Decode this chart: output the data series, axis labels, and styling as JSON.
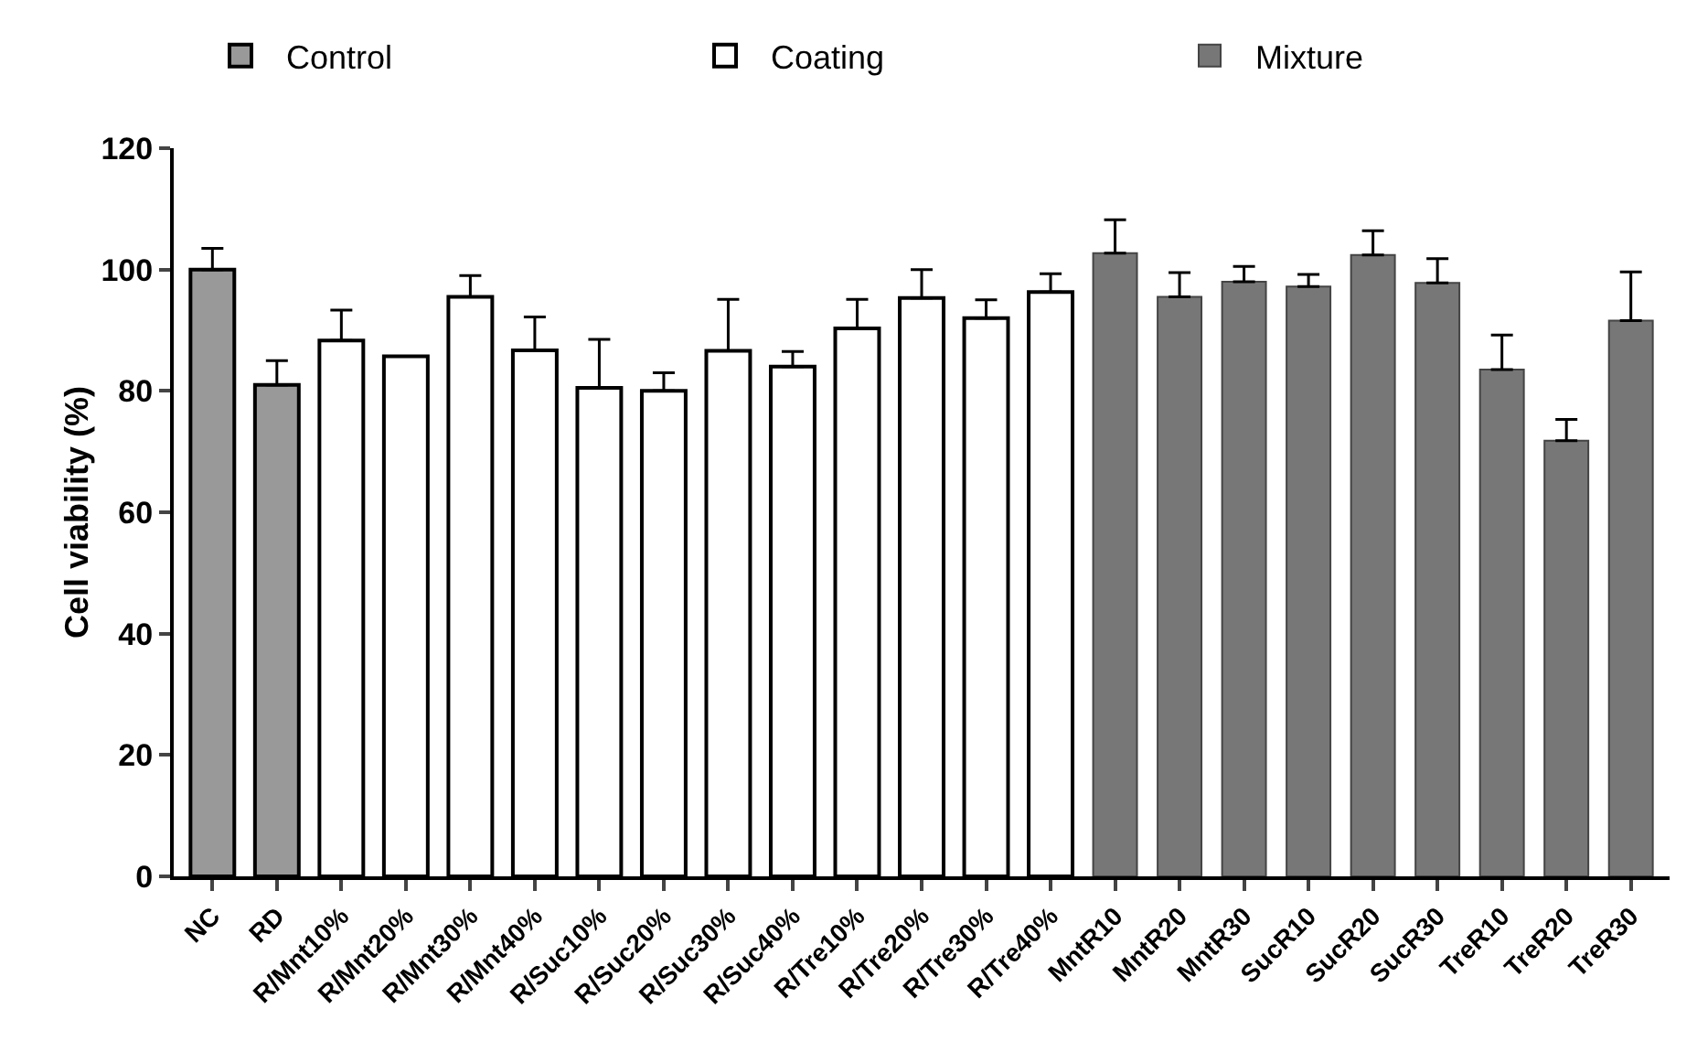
{
  "chart_data": {
    "type": "bar",
    "ylabel": "Cell viability (%)",
    "categories": [
      "NC",
      "RD",
      "R/Mnt10%",
      "R/Mnt20%",
      "R/Mnt30%",
      "R/Mnt40%",
      "R/Suc10%",
      "R/Suc20%",
      "R/Suc30%",
      "R/Suc40%",
      "R/Tre10%",
      "R/Tre20%",
      "R/Tre30%",
      "R/Tre40%",
      "MntR10",
      "MntR20",
      "MntR30",
      "SucR10",
      "SucR20",
      "SucR30",
      "TreR10",
      "TreR20",
      "TreR30"
    ],
    "series": [
      {
        "name": "Control",
        "color": "#999999",
        "values": [
          100,
          81,
          null,
          null,
          null,
          null,
          null,
          null,
          null,
          null,
          null,
          null,
          null,
          null,
          null,
          null,
          null,
          null,
          null,
          null,
          null,
          null,
          null
        ],
        "errors": [
          3.5,
          4,
          null,
          null,
          null,
          null,
          null,
          null,
          null,
          null,
          null,
          null,
          null,
          null,
          null,
          null,
          null,
          null,
          null,
          null,
          null,
          null,
          null
        ]
      },
      {
        "name": "Coating",
        "color": "#ffffff",
        "values": [
          null,
          null,
          88.3,
          85.7,
          95.5,
          86.7,
          80.5,
          80,
          86.6,
          84,
          90.3,
          95.3,
          92,
          96.3,
          null,
          null,
          null,
          null,
          null,
          null,
          null,
          null,
          null
        ],
        "errors": [
          null,
          null,
          5,
          0,
          3.5,
          5.5,
          8,
          3,
          8.5,
          2.5,
          4.8,
          4.7,
          3,
          3,
          null,
          null,
          null,
          null,
          null,
          null,
          null,
          null,
          null
        ]
      },
      {
        "name": "Mixture",
        "color": "#777777",
        "values": [
          null,
          null,
          null,
          null,
          null,
          null,
          null,
          null,
          null,
          null,
          null,
          null,
          null,
          null,
          102.7,
          95.5,
          98,
          97.2,
          102.4,
          97.8,
          83.5,
          71.8,
          91.6
        ],
        "errors": [
          null,
          null,
          null,
          null,
          null,
          null,
          null,
          null,
          null,
          null,
          null,
          null,
          null,
          null,
          5.5,
          4,
          2.5,
          2,
          4,
          4,
          5.7,
          3.5,
          8
        ]
      }
    ],
    "ylim": [
      0,
      120
    ],
    "yticks": [
      0,
      20,
      40,
      60,
      80,
      100,
      120
    ],
    "grid": false,
    "legend": "top"
  }
}
